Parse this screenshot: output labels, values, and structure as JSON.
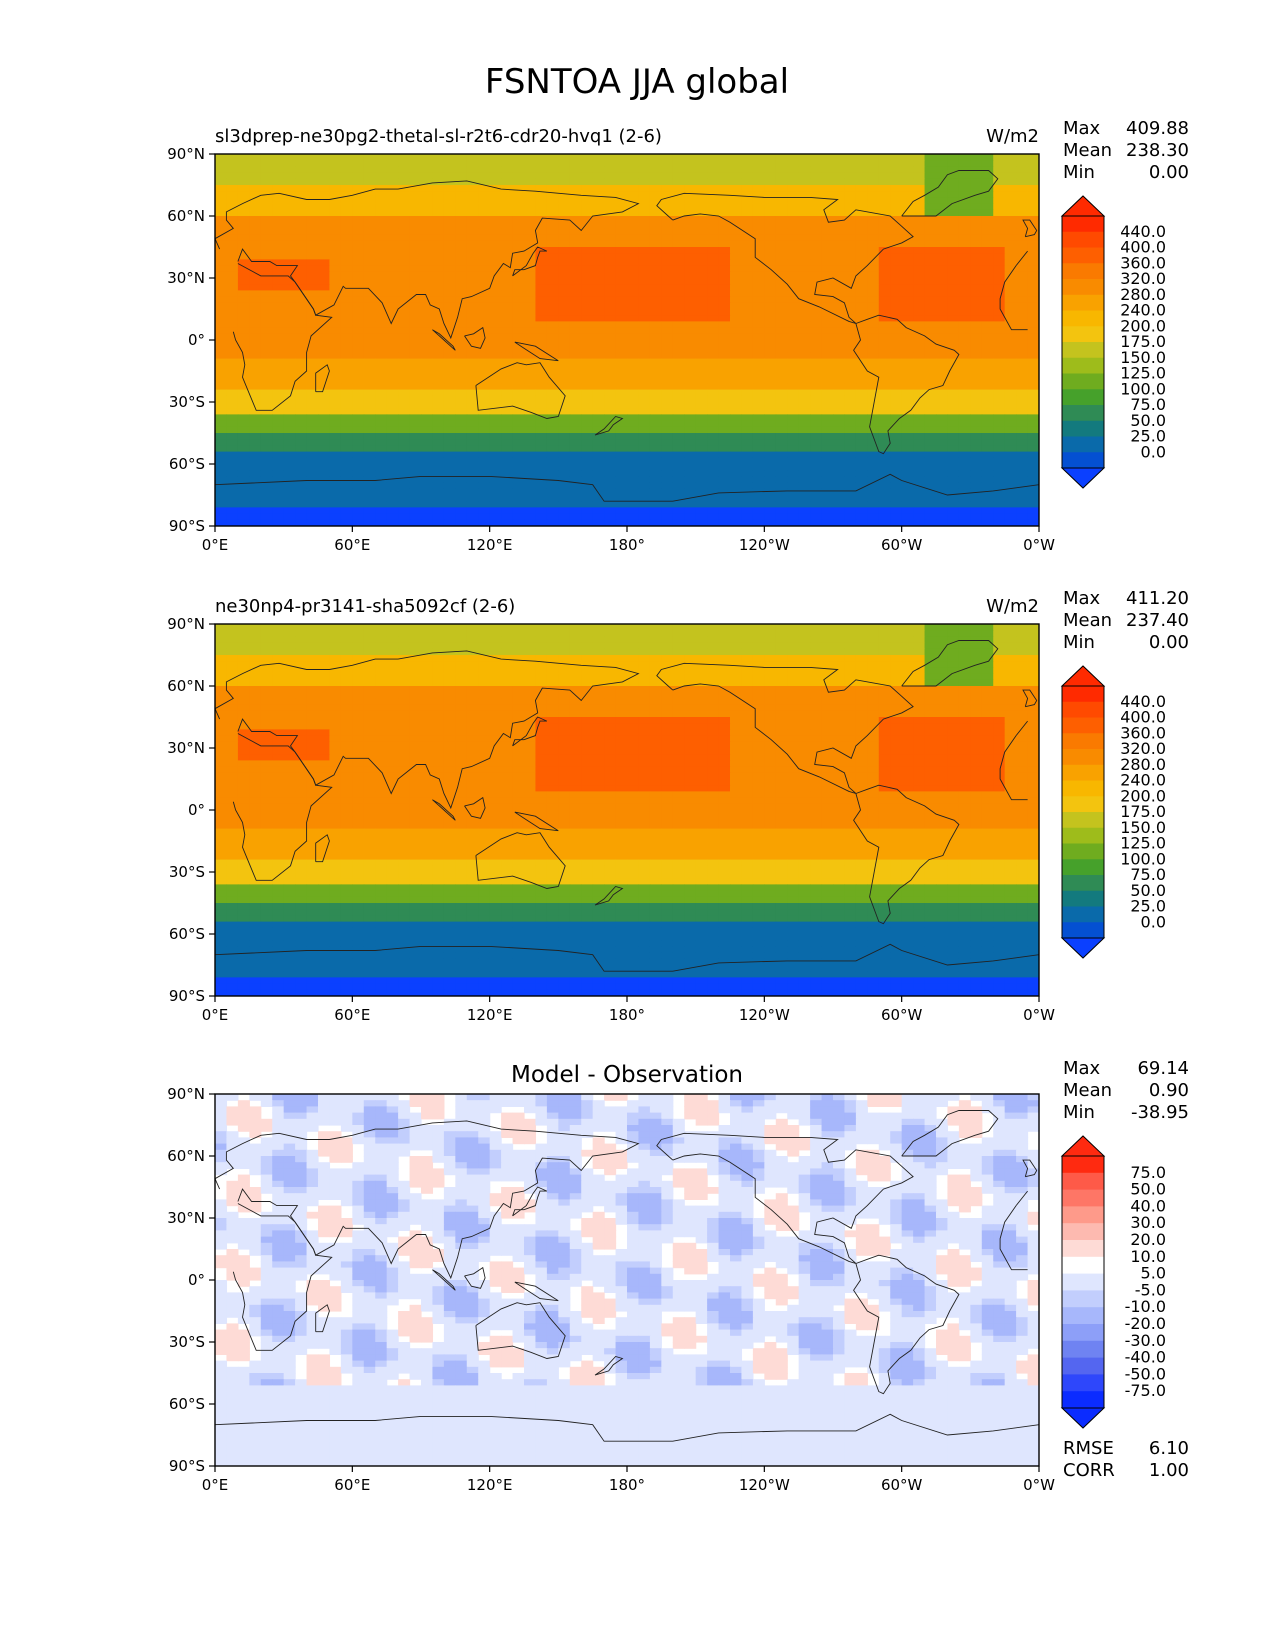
{
  "title": "FSNTOA JJA global",
  "panels": [
    {
      "name": "test",
      "title": "sl3dprep-ne30pg2-thetal-sl-r2t6-cdr20-hvq1 (2-6)",
      "title_align": "left",
      "units": "W/m2",
      "stats": [
        {
          "label": "Max",
          "value": "409.88"
        },
        {
          "label": "Mean",
          "value": "238.30"
        },
        {
          "label": "Min",
          "value": "0.00"
        }
      ],
      "colorbar": {
        "labels": [
          "440.0",
          "400.0",
          "360.0",
          "320.0",
          "280.0",
          "240.0",
          "200.0",
          "175.0",
          "150.0",
          "125.0",
          "100.0",
          "75.0",
          "50.0",
          "25.0",
          "0.0"
        ],
        "colors": [
          "#ff2a00",
          "#ff4a00",
          "#fe5f00",
          "#fa7a00",
          "#f98b00",
          "#f9a200",
          "#f8b700",
          "#f3c40f",
          "#c4c31e",
          "#9ebc1b",
          "#6fac1f",
          "#46a12b",
          "#2f8b55",
          "#137a7e",
          "#0a6aaa",
          "#0450d2"
        ],
        "under_color": "#0b40ff",
        "over_color": "#ff2a00"
      },
      "field": "mean"
    },
    {
      "name": "reference",
      "title": "ne30np4-pr3141-sha5092cf (2-6)",
      "title_align": "left",
      "units": "W/m2",
      "stats": [
        {
          "label": "Max",
          "value": "411.20"
        },
        {
          "label": "Mean",
          "value": "237.40"
        },
        {
          "label": "Min",
          "value": "0.00"
        }
      ],
      "colorbar": {
        "labels": [
          "440.0",
          "400.0",
          "360.0",
          "320.0",
          "280.0",
          "240.0",
          "200.0",
          "175.0",
          "150.0",
          "125.0",
          "100.0",
          "75.0",
          "50.0",
          "25.0",
          "0.0"
        ],
        "colors": [
          "#ff2a00",
          "#ff4a00",
          "#fe5f00",
          "#fa7a00",
          "#f98b00",
          "#f9a200",
          "#f8b700",
          "#f3c40f",
          "#c4c31e",
          "#9ebc1b",
          "#6fac1f",
          "#46a12b",
          "#2f8b55",
          "#137a7e",
          "#0a6aaa",
          "#0450d2"
        ],
        "under_color": "#0b40ff",
        "over_color": "#ff2a00"
      },
      "field": "mean"
    },
    {
      "name": "difference",
      "title": "Model - Observation",
      "title_align": "center",
      "units": "",
      "stats": [
        {
          "label": "Max",
          "value": "69.14"
        },
        {
          "label": "Mean",
          "value": "0.90"
        },
        {
          "label": "Min",
          "value": "-38.95"
        }
      ],
      "extra_stats": [
        {
          "label": "RMSE",
          "value": "6.10"
        },
        {
          "label": "CORR",
          "value": "1.00"
        }
      ],
      "colorbar": {
        "labels": [
          "75.0",
          "50.0",
          "40.0",
          "30.0",
          "20.0",
          "10.0",
          "5.0",
          "-5.0",
          "-10.0",
          "-20.0",
          "-30.0",
          "-40.0",
          "-50.0",
          "-75.0"
        ],
        "colors": [
          "#ff2a10",
          "#fe5a48",
          "#fe7666",
          "#fe9a8a",
          "#fdbab0",
          "#fedbd6",
          "#ffffff",
          "#dfe6fe",
          "#c2cefd",
          "#a7b7fb",
          "#8d9ff8",
          "#6f83f2",
          "#5466f0",
          "#2e47fb",
          "#0b2cff"
        ],
        "under_color": "#0b2cff",
        "over_color": "#ff2a10"
      },
      "field": "diff"
    }
  ],
  "axes": {
    "x_ticks": [
      "0°E",
      "60°E",
      "120°E",
      "180°",
      "120°W",
      "60°W",
      "0°W"
    ],
    "y_ticks": [
      "90°N",
      "60°N",
      "30°N",
      "0°",
      "30°S",
      "60°S",
      "90°S"
    ]
  }
}
